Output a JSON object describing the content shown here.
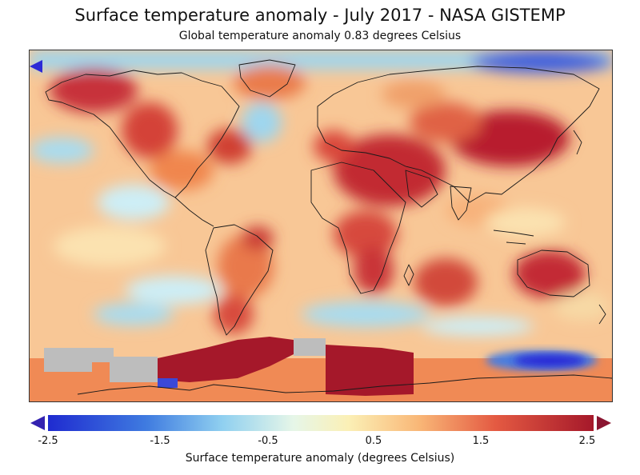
{
  "title": "Surface temperature anomaly - July 2017 - NASA GISTEMP",
  "subtitle": "Global temperature anomaly 0.83 degrees Celsius",
  "colorbar": {
    "label": "Surface temperature anomaly (degrees Celsius)",
    "ticks": [
      "-2.5",
      "-1.5",
      "-0.5",
      "0.5",
      "1.5",
      "2.5"
    ],
    "range": [
      -2.5,
      2.5
    ],
    "colors": {
      "deep_blue": "#2b2bd6",
      "blue": "#4a7ee0",
      "light_blue": "#a9dcf2",
      "neutral": "#fbf6cf",
      "light_orange": "#fcc590",
      "orange": "#f08a55",
      "red": "#d94436",
      "dark_red": "#a5182a",
      "no_data": "#bdbdbd"
    }
  },
  "map": {
    "projection": "Robinson-like",
    "ocean_background": "#f8c796"
  }
}
